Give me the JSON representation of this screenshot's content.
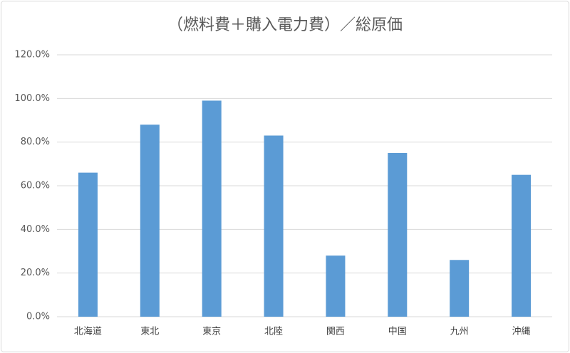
{
  "chart_data": {
    "type": "bar",
    "title": "（燃料費＋購入電力費）／総原価",
    "categories": [
      "北海道",
      "東北",
      "東京",
      "北陸",
      "関西",
      "中国",
      "九州",
      "沖縄"
    ],
    "values": [
      66,
      88,
      99,
      83,
      28,
      75,
      26,
      65
    ],
    "color": "#5b9bd5",
    "ylim": [
      0,
      120
    ],
    "yticks": [
      {
        "value": 0,
        "label": "0.0%"
      },
      {
        "value": 20,
        "label": "20.0%"
      },
      {
        "value": 40,
        "label": "40.0%"
      },
      {
        "value": 60,
        "label": "60.0%"
      },
      {
        "value": 80,
        "label": "80.0%"
      },
      {
        "value": 100,
        "label": "100.0%"
      },
      {
        "value": 120,
        "label": "120.0%"
      }
    ],
    "grid": true
  }
}
